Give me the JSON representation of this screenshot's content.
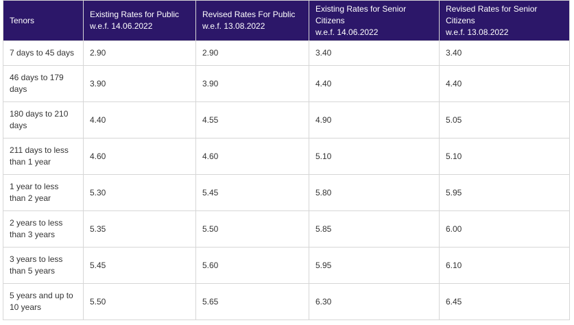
{
  "table": {
    "header": [
      [
        "Tenors"
      ],
      [
        "Existing Rates for Public",
        "w.e.f. 14.06.2022"
      ],
      [
        "Revised Rates For Public",
        "w.e.f. 13.08.2022"
      ],
      [
        "Existing Rates for Senior Citizens",
        "w.e.f. 14.06.2022"
      ],
      [
        "Revised Rates for Senior Citizens",
        "w.e.f. 13.08.2022"
      ]
    ],
    "rows": [
      [
        "7 days to 45 days",
        "2.90",
        "2.90",
        "3.40",
        "3.40"
      ],
      [
        "46 days to 179 days",
        "3.90",
        "3.90",
        "4.40",
        "4.40"
      ],
      [
        "180 days to 210 days",
        "4.40",
        "4.55",
        "4.90",
        "5.05"
      ],
      [
        "211 days to less than 1 year",
        "4.60",
        "4.60",
        "5.10",
        "5.10"
      ],
      [
        "1 year to less than 2 year",
        "5.30",
        "5.45",
        "5.80",
        "5.95"
      ],
      [
        "2 years to less than 3 years",
        "5.35",
        "5.50",
        "5.85",
        "6.00"
      ],
      [
        "3 years to less than 5 years",
        "5.45",
        "5.60",
        "5.95",
        "6.10"
      ],
      [
        "5 years and up to 10 years",
        "5.50",
        "5.65",
        "6.30",
        "6.45"
      ]
    ]
  }
}
